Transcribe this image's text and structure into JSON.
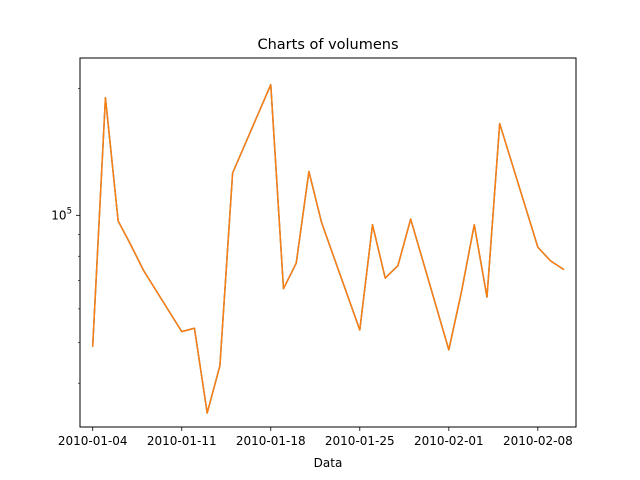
{
  "chart_data": {
    "type": "line",
    "title": "Charts of volumens",
    "xlabel": "Data",
    "ylabel": "",
    "yscale": "log",
    "grid": false,
    "x": [
      "2010-01-04",
      "2010-01-05",
      "2010-01-06",
      "2010-01-07",
      "2010-01-08",
      "2010-01-11",
      "2010-01-12",
      "2010-01-13",
      "2010-01-14",
      "2010-01-15",
      "2010-01-18",
      "2010-01-19",
      "2010-01-20",
      "2010-01-21",
      "2010-01-22",
      "2010-01-25",
      "2010-01-26",
      "2010-01-27",
      "2010-01-28",
      "2010-01-29",
      "2010-02-01",
      "2010-02-02",
      "2010-02-03",
      "2010-02-04",
      "2010-02-05",
      "2010-02-08",
      "2010-02-09",
      "2010-02-10"
    ],
    "series": [
      {
        "color": "#1f77b4",
        "values": [
          49000,
          190000,
          97000,
          85000,
          74000,
          53000,
          54000,
          34000,
          44000,
          126000,
          204000,
          67000,
          77000,
          127000,
          96000,
          53500,
          95000,
          71000,
          76000,
          98000,
          48000,
          66000,
          95000,
          64000,
          165000,
          84000,
          78000,
          74500
        ]
      },
      {
        "color": "#ff7f0e",
        "values": [
          49000,
          190000,
          97000,
          85000,
          74000,
          53000,
          54000,
          34000,
          44000,
          126000,
          204000,
          67000,
          77000,
          127000,
          96000,
          53500,
          95000,
          71000,
          76000,
          98000,
          48000,
          66000,
          95000,
          64000,
          165000,
          84000,
          78000,
          74500
        ]
      }
    ],
    "xticks": [
      "2010-01-04",
      "2010-01-11",
      "2010-01-18",
      "2010-01-25",
      "2010-02-01",
      "2010-02-08"
    ],
    "yticks": [
      {
        "value": 100000,
        "label_base": "10",
        "label_exp": "5"
      }
    ],
    "ylim": [
      31500,
      236000
    ],
    "xlim": [
      "2010-01-03",
      "2010-02-11"
    ]
  }
}
